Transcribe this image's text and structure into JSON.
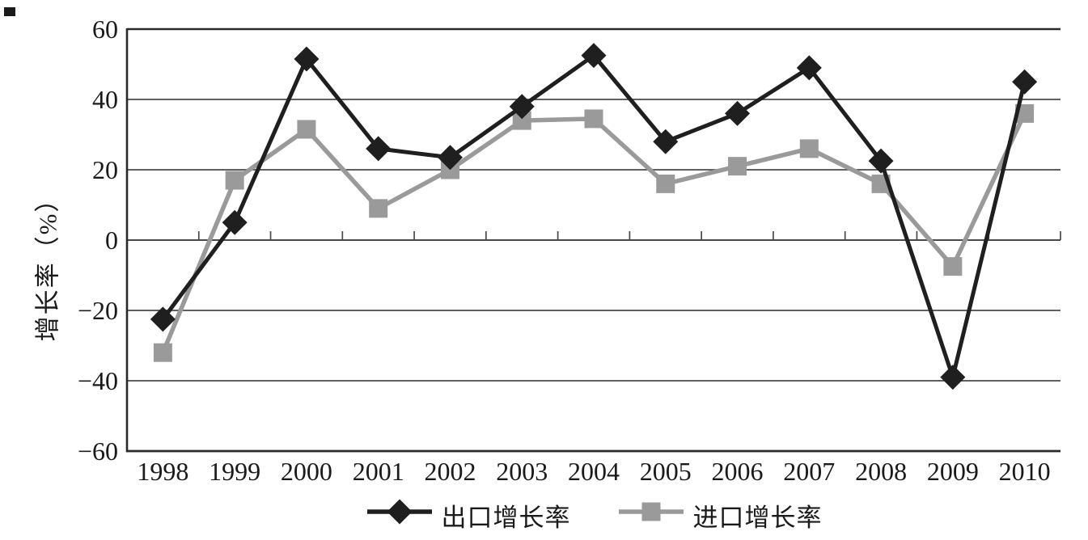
{
  "figure": {
    "background": "#ffffff",
    "axis_color": "#2a2a2a",
    "grid_color": "#4a4a4a"
  },
  "chart_data": {
    "type": "line",
    "title": "",
    "xlabel": "",
    "ylabel": "增长率（%）",
    "categories": [
      "1998",
      "1999",
      "2000",
      "2001",
      "2002",
      "2003",
      "2004",
      "2005",
      "2006",
      "2007",
      "2008",
      "2009",
      "2010"
    ],
    "y_ticks": [
      60,
      40,
      20,
      0,
      -20,
      -40,
      -60
    ],
    "ylim": [
      -60,
      60
    ],
    "grid": "horizontal",
    "legend_position": "bottom",
    "series": [
      {
        "name": "出口增长率",
        "marker": "diamond",
        "color": "#1f1f1f",
        "values": [
          -22.5,
          5,
          51.5,
          26,
          23.5,
          38,
          52.5,
          28,
          36,
          49,
          22.5,
          -39,
          45
        ]
      },
      {
        "name": "进口增长率",
        "marker": "square",
        "color": "#9a9a9a",
        "values": [
          -32,
          17,
          31.5,
          9,
          20,
          34,
          34.5,
          16,
          21,
          26,
          16,
          -7.5,
          36
        ]
      }
    ]
  }
}
